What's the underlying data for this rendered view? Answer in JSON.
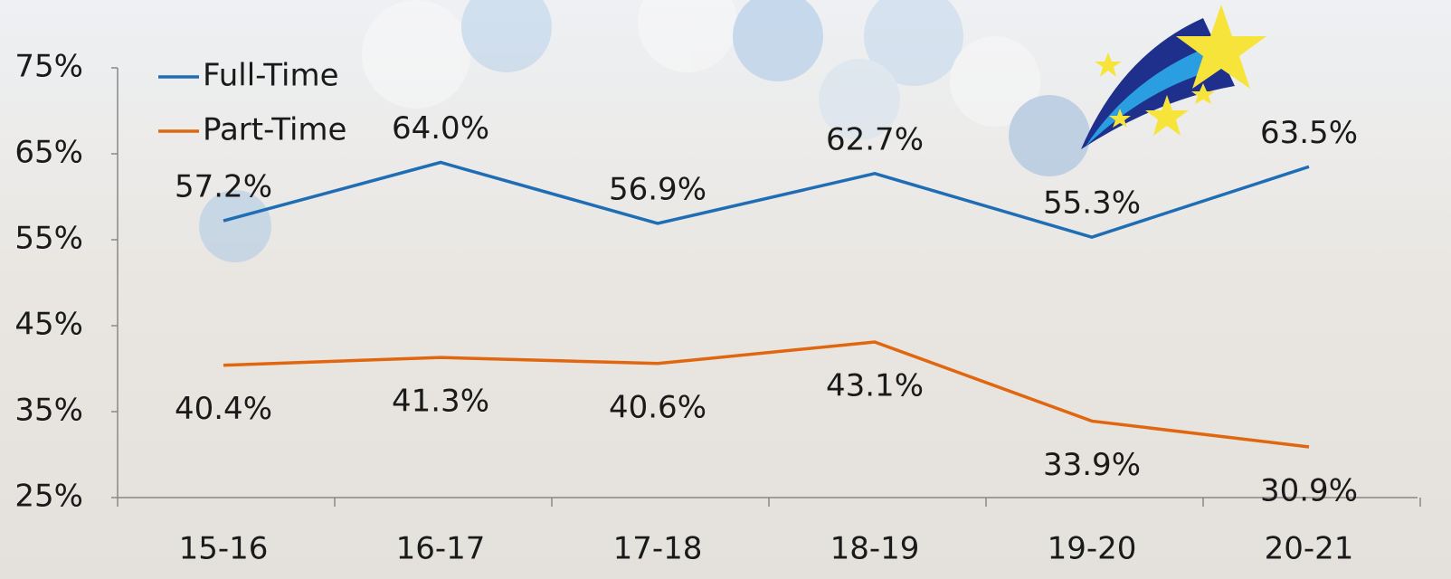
{
  "chart_data": {
    "type": "line",
    "categories": [
      "15-16",
      "16-17",
      "17-18",
      "18-19",
      "19-20",
      "20-21"
    ],
    "series": [
      {
        "name": "Full-Time",
        "color": "#1f6db5",
        "values": [
          57.2,
          64.0,
          56.9,
          62.7,
          55.3,
          63.5
        ],
        "value_labels": [
          "57.2%",
          "64.0%",
          "56.9%",
          "62.7%",
          "55.3%",
          "63.5%"
        ]
      },
      {
        "name": "Part-Time",
        "color": "#e0660f",
        "values": [
          40.4,
          41.3,
          40.6,
          43.1,
          33.9,
          30.9
        ],
        "value_labels": [
          "40.4%",
          "41.3%",
          "40.6%",
          "43.1%",
          "33.9%",
          "30.9%"
        ]
      }
    ],
    "ylim": [
      25,
      75
    ],
    "yticks": [
      {
        "value": 25,
        "label": "25%"
      },
      {
        "value": 35,
        "label": "35%"
      },
      {
        "value": 45,
        "label": "45%"
      },
      {
        "value": 55,
        "label": "55%"
      },
      {
        "value": 65,
        "label": "65%"
      },
      {
        "value": 75,
        "label": "75%"
      }
    ],
    "grid": false,
    "legend": "top-left"
  }
}
